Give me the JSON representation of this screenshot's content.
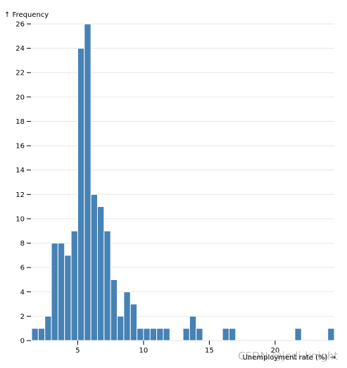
{
  "chart_data": {
    "type": "bar",
    "bin_width": 0.5,
    "bins_start": [
      1.5,
      2,
      2.5,
      3,
      3.5,
      4,
      4.5,
      5,
      5.5,
      6,
      6.5,
      7,
      7.5,
      8,
      8.5,
      9,
      9.5,
      10,
      10.5,
      11,
      11.5,
      12,
      12.5,
      13,
      13.5,
      14,
      14.5,
      15,
      15.5,
      16,
      16.5,
      17,
      17.5,
      18,
      18.5,
      19,
      19.5,
      20,
      20.5,
      21,
      21.5,
      22,
      22.5,
      23,
      23.5,
      24
    ],
    "values": [
      1,
      1,
      2,
      8,
      8,
      7,
      9,
      24,
      26,
      12,
      11,
      9,
      5,
      2,
      4,
      3,
      1,
      1,
      1,
      1,
      1,
      0,
      0,
      1,
      2,
      1,
      0,
      0,
      0,
      1,
      1,
      0,
      0,
      0,
      0,
      0,
      0,
      0,
      0,
      0,
      1,
      0,
      0,
      0,
      0,
      1
    ],
    "xlim": [
      1.5,
      24.5
    ],
    "ylim": [
      0,
      26
    ],
    "x_ticks": [
      5,
      10,
      15,
      20
    ],
    "y_ticks": [
      0,
      2,
      4,
      6,
      8,
      10,
      12,
      14,
      16,
      18,
      20,
      22,
      24,
      26
    ],
    "xlabel": "Unemployment rate (%) →",
    "ylabel": "↑ Frequency",
    "grid": "horizontal",
    "bar_color": "#4682b4"
  },
  "watermark": "CSDN @jedi-knight"
}
